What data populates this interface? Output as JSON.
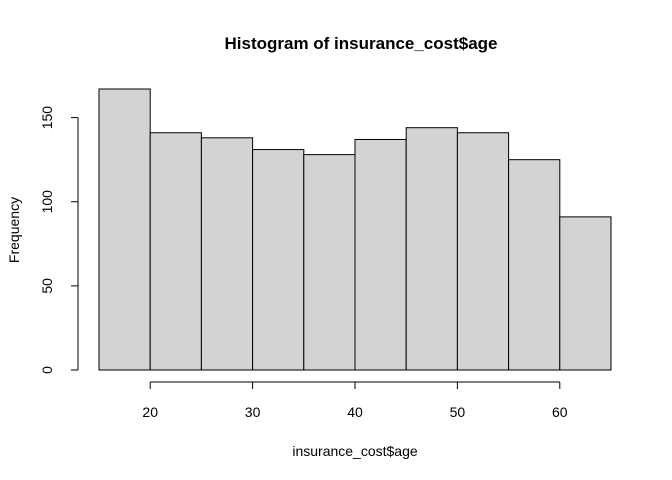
{
  "chart_data": {
    "type": "bar",
    "title": "Histogram of insurance_cost$age",
    "xlabel": "insurance_cost$age",
    "ylabel": "Frequency",
    "bins": [
      {
        "start": 15,
        "end": 20,
        "count": 167
      },
      {
        "start": 20,
        "end": 25,
        "count": 141
      },
      {
        "start": 25,
        "end": 30,
        "count": 138
      },
      {
        "start": 30,
        "end": 35,
        "count": 131
      },
      {
        "start": 35,
        "end": 40,
        "count": 128
      },
      {
        "start": 40,
        "end": 45,
        "count": 137
      },
      {
        "start": 45,
        "end": 50,
        "count": 144
      },
      {
        "start": 50,
        "end": 55,
        "count": 141
      },
      {
        "start": 55,
        "end": 60,
        "count": 125
      },
      {
        "start": 60,
        "end": 65,
        "count": 91
      }
    ],
    "xlim": [
      15,
      65
    ],
    "ylim": [
      0,
      167
    ],
    "x_ticks": [
      20,
      30,
      40,
      50,
      60
    ],
    "y_ticks": [
      0,
      50,
      100,
      150
    ],
    "grid": false,
    "bar_color": "#d3d3d3",
    "edge_color": "#000000"
  }
}
